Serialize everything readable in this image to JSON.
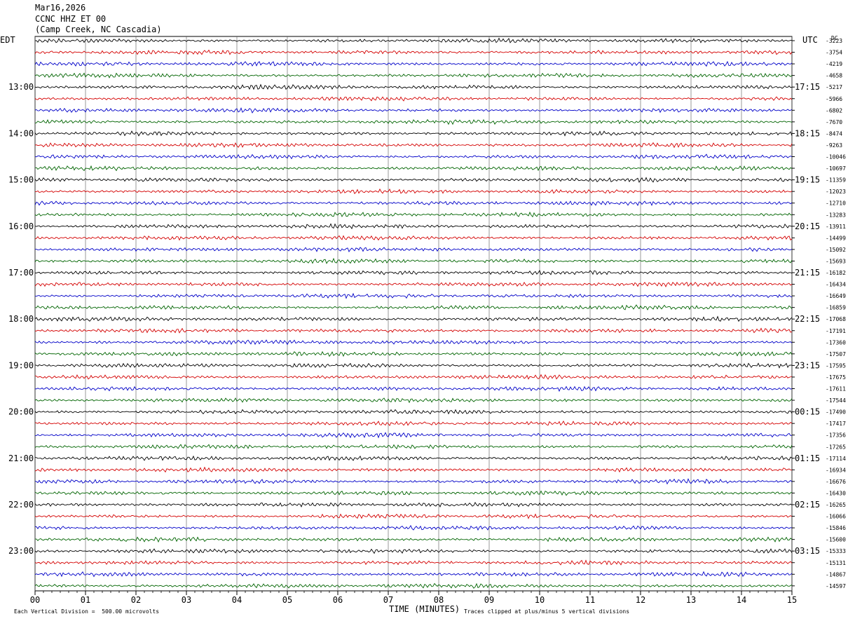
{
  "header": {
    "date": "Mar16,2026",
    "station": "CCNC HHZ ET 00",
    "location": "(Camp Creek, NC Cascadia)"
  },
  "left_tz": "EDT",
  "right_tz": "UTC",
  "dc_label": "DC",
  "xlabel": "TIME (MINUTES)",
  "footer_left": "Each Vertical Division =  500.00 microvolts",
  "footer_right": "Traces clipped at plus/minus 5 vertical divisions",
  "colors": {
    "trace_cycle": [
      "#000000",
      "#d40000",
      "#0000c8",
      "#006400"
    ],
    "grid": "#000000"
  },
  "chart_data": {
    "type": "helicorder",
    "x_ticks": [
      "00",
      "01",
      "02",
      "03",
      "04",
      "05",
      "06",
      "07",
      "08",
      "09",
      "10",
      "11",
      "12",
      "13",
      "14",
      "15"
    ],
    "xlim": [
      0,
      15
    ],
    "left_hour_labels": [
      "13:00",
      "14:00",
      "15:00",
      "16:00",
      "17:00",
      "18:00",
      "19:00",
      "20:00",
      "21:00",
      "22:00",
      "23:00"
    ],
    "right_hour_labels": [
      "17:15",
      "18:15",
      "19:15",
      "20:15",
      "21:15",
      "22:15",
      "23:15",
      "00:15",
      "01:15",
      "02:15",
      "03:15"
    ],
    "first_hour_line_index": 4,
    "lines_per_hour": 4,
    "dc_offsets": [
      "-3223",
      "-3754",
      "-4219",
      "-4658",
      "-5217",
      "-5966",
      "-6802",
      "-7670",
      "-8474",
      "-9263",
      "-10046",
      "-10697",
      "-11359",
      "-12023",
      "-12710",
      "-13283",
      "-13911",
      "-14499",
      "-15092",
      "-15693",
      "-16182",
      "-16434",
      "-16649",
      "-16859",
      "-17068",
      "-17191",
      "-17360",
      "-17507",
      "-17595",
      "-17675",
      "-17611",
      "-17544",
      "-17490",
      "-17417",
      "-17356",
      "-17265",
      "-17114",
      "-16934",
      "-16676",
      "-16430",
      "-16265",
      "-16066",
      "-15846",
      "-15600",
      "-15333",
      "-15131",
      "-14867",
      "-14597"
    ]
  }
}
